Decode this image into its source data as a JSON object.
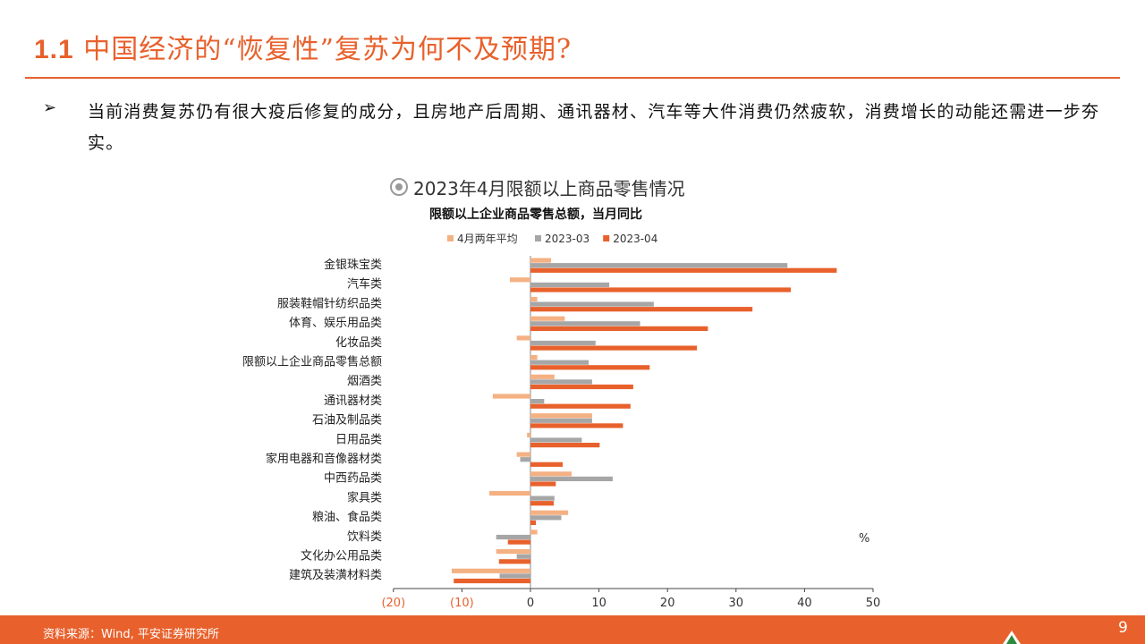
{
  "header": {
    "title_num": "1.1",
    "title_text": "中国经济的“恢复性”复苏为何不及预期?"
  },
  "bullet": {
    "arrow": "➢",
    "text": "当前消费复苏仍有很大疫后修复的成分，且房地产后周期、通讯器材、汽车等大件消费仍然疲软，消费增长的动能还需进一步夯实。"
  },
  "chart_heading": "2023年4月限额以上商品零售情况",
  "footer": {
    "source": "资料来源：Wind, 平安证券研究所",
    "page": "9"
  },
  "colors": {
    "accent": "#e8612c",
    "series_avg": "#f4b183",
    "series_mar": "#a6a6a6",
    "series_apr": "#e8612c"
  },
  "chart_data": {
    "type": "bar",
    "orientation": "horizontal",
    "title": "限额以上企业商品零售总额，当月同比",
    "unit_label": "%",
    "legend_position": "top",
    "xlim": [
      -20,
      50
    ],
    "xticks": [
      -20,
      -10,
      0,
      10,
      20,
      30,
      40,
      50
    ],
    "xtick_labels": [
      "(20)",
      "(10)",
      "0",
      "10",
      "20",
      "30",
      "40",
      "50"
    ],
    "categories": [
      "金银珠宝类",
      "汽车类",
      "服装鞋帽针纺织品类",
      "体育、娱乐用品类",
      "化妆品类",
      "限额以上企业商品零售总额",
      "烟酒类",
      "通讯器材类",
      "石油及制品类",
      "日用品类",
      "家用电器和音像器材类",
      "中西药品类",
      "家具类",
      "粮油、食品类",
      "饮料类",
      "文化办公用品类",
      "建筑及装潢材料类"
    ],
    "series": [
      {
        "name": "4月两年平均",
        "values": [
          3,
          -3,
          1,
          5,
          -2,
          1,
          3.5,
          -5.5,
          9,
          -0.5,
          -2,
          6,
          -6,
          5.5,
          1,
          -5,
          -11.5
        ]
      },
      {
        "name": "2023-03",
        "values": [
          37.5,
          11.5,
          18,
          16,
          9.5,
          8.5,
          9,
          2,
          9,
          7.5,
          -1.5,
          12,
          3.5,
          4.5,
          -5,
          -2,
          -4.5
        ]
      },
      {
        "name": "2023-04",
        "values": [
          44.7,
          38,
          32.4,
          25.9,
          24.3,
          17.4,
          15,
          14.6,
          13.5,
          10.1,
          4.7,
          3.7,
          3.4,
          0.8,
          -3.3,
          -4.6,
          -11.2
        ]
      }
    ]
  }
}
